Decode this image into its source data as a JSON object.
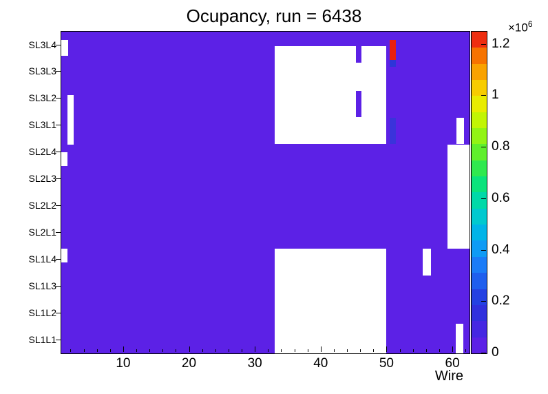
{
  "chart_data": {
    "type": "heatmap",
    "title": "Ocupancy, run = 6438",
    "xlabel": "Wire",
    "x_axis": {
      "min": 0.5,
      "max": 62.5,
      "major_ticks": [
        10,
        20,
        30,
        40,
        50,
        60
      ],
      "minor_tick_step": 2
    },
    "y_rows_top_to_bottom": [
      "SL3L4",
      "SL3L3",
      "SL3L2",
      "SL3L1",
      "SL2L4",
      "SL2L3",
      "SL2L2",
      "SL2L1",
      "SL1L4",
      "SL1L3",
      "SL1L2",
      "SL1L1"
    ],
    "base": {
      "color": "#5c21e6",
      "value_approx": 50000
    },
    "empty_regions_value": 0,
    "empty_regions": [
      {
        "x": [
          32.9,
          49.9
        ],
        "y": [
          0.55,
          4.2
        ]
      },
      {
        "x": [
          59.2,
          62.5
        ],
        "y": [
          4.2,
          8.1
        ]
      },
      {
        "x": [
          60.5,
          61.7
        ],
        "y": [
          3.2,
          4.2
        ]
      },
      {
        "x": [
          32.9,
          49.9
        ],
        "y": [
          8.1,
          12
        ]
      },
      {
        "x": [
          60.4,
          61.6
        ],
        "y": [
          10.9,
          12
        ]
      },
      {
        "x": [
          0.5,
          1.5
        ],
        "y": [
          0.3,
          0.9
        ]
      },
      {
        "x": [
          1.4,
          2.4
        ],
        "y": [
          2.35,
          4.2
        ]
      },
      {
        "x": [
          0.5,
          1.4
        ],
        "y": [
          4.5,
          5.0
        ]
      },
      {
        "x": [
          0.5,
          1.4
        ],
        "y": [
          8.1,
          8.6
        ]
      },
      {
        "x": [
          55.4,
          56.7
        ],
        "y": [
          8.1,
          9.1
        ]
      }
    ],
    "overlay_cells": [
      {
        "x": [
          45.2,
          46.1
        ],
        "y": [
          0.55,
          1.16
        ],
        "color": "#5c21e6",
        "value_approx": 50000
      },
      {
        "x": [
          45.2,
          46.1
        ],
        "y": [
          2.2,
          3.2
        ],
        "color": "#5c21e6",
        "value_approx": 50000
      },
      {
        "x": [
          50.4,
          51.3
        ],
        "y": [
          0.3,
          1.05
        ],
        "color": "#ea2010",
        "value_approx": 1250000
      },
      {
        "x": [
          50.4,
          51.3
        ],
        "y": [
          1.05,
          1.3
        ],
        "color": "#2e35d8",
        "value_approx": 150000
      },
      {
        "x": [
          50.4,
          51.3
        ],
        "y": [
          3.2,
          4.2
        ],
        "color": "#3a33db",
        "value_approx": 100000
      }
    ],
    "colorbar": {
      "min": 0,
      "axis_max": 1.25,
      "max_value": 1250000,
      "tick_values": [
        0,
        0.2,
        0.4,
        0.6,
        0.8,
        1,
        1.2
      ],
      "tick_labels": [
        "0",
        "0.2",
        "0.4",
        "0.6",
        "0.8",
        "1",
        "1.2"
      ],
      "scale_prefix": "×10",
      "scale_exponent": "6",
      "colors_bottom_to_top": [
        "#5c21e6",
        "#4527e2",
        "#3030dd",
        "#2441e2",
        "#1f5fee",
        "#1b7cf7",
        "#0f9bf5",
        "#00b4e8",
        "#00c9cf",
        "#00d9a8",
        "#0ae37c",
        "#2fe94f",
        "#5fef2c",
        "#92f414",
        "#c2f504",
        "#e9ec00",
        "#f7cc00",
        "#f9a200",
        "#f67300",
        "#ee2e10"
      ]
    }
  }
}
